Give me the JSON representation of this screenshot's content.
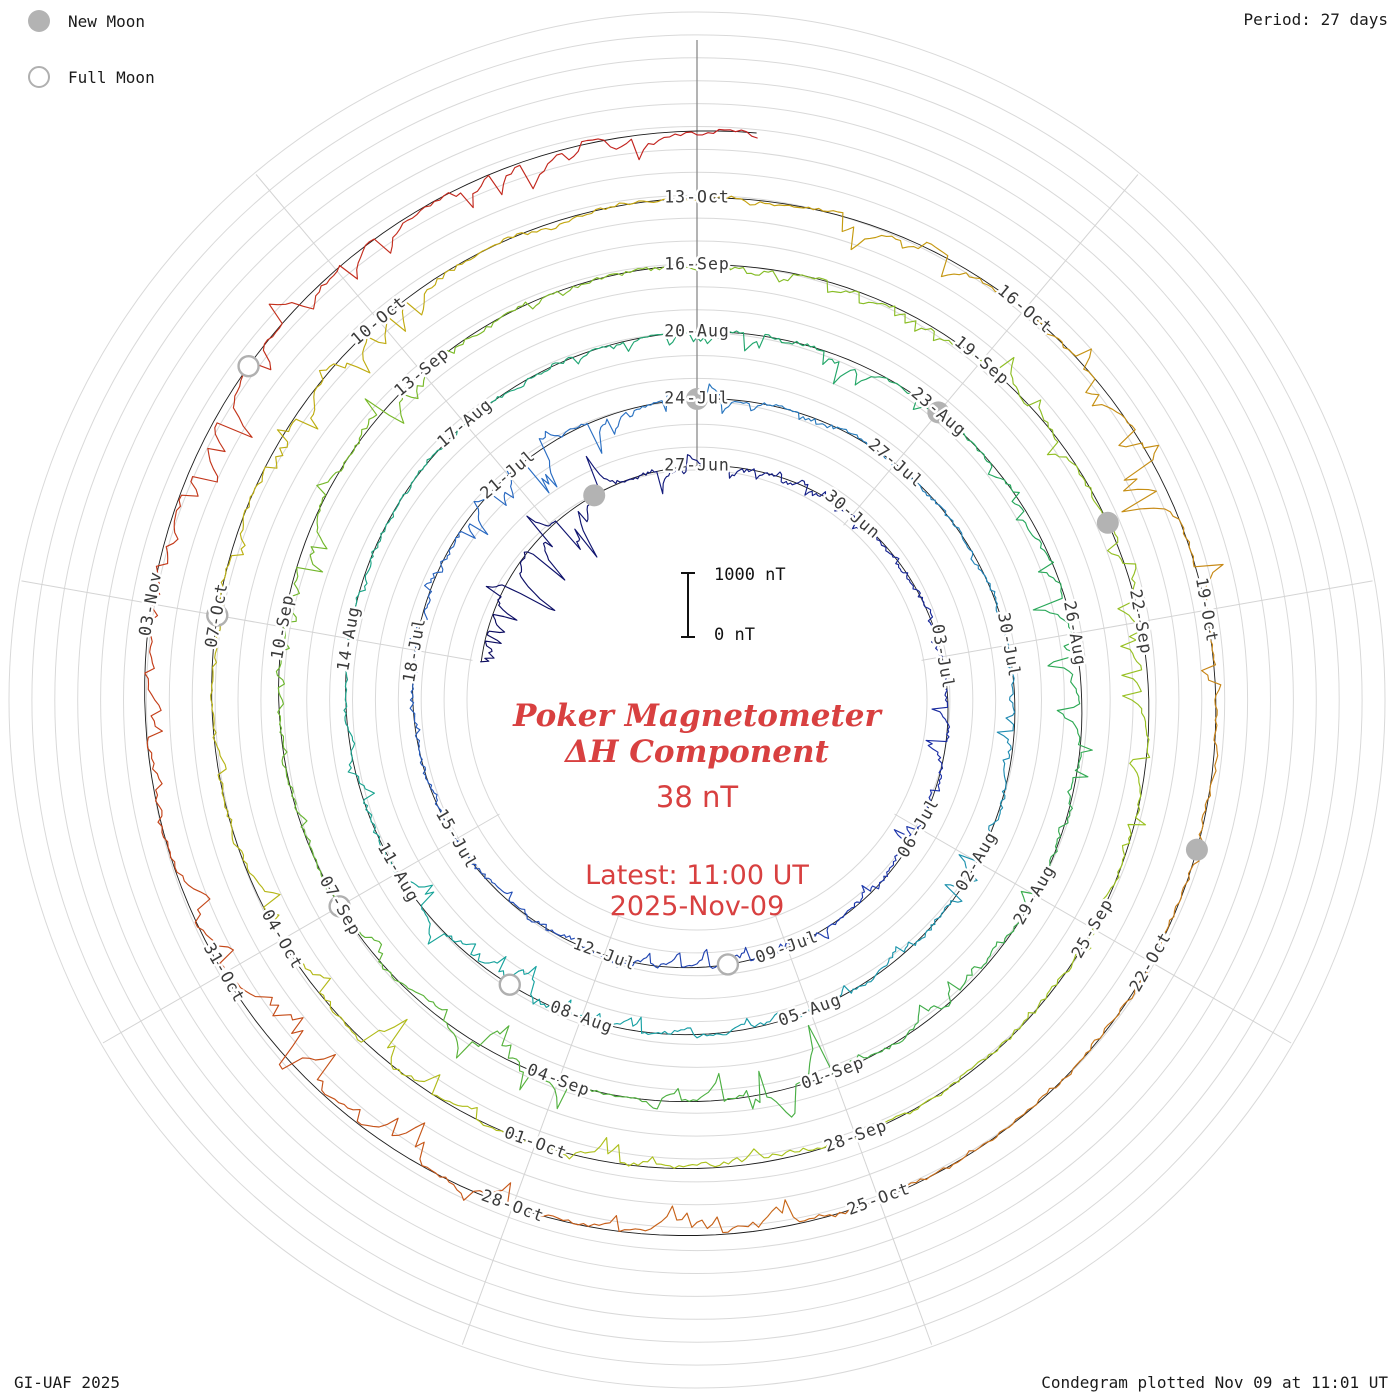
{
  "header": {
    "legend": {
      "new_moon_label": "New Moon",
      "full_moon_label": "Full Moon"
    },
    "period_label": "Period: 27 days"
  },
  "center": {
    "scale_top": "1000 nT",
    "scale_bottom": "0 nT",
    "title_line1": "Poker Magnetometer",
    "title_line2": "ΔH Component",
    "current_value": "38 nT",
    "latest_time": "Latest: 11:00 UT",
    "latest_date": "2025-Nov-09"
  },
  "footer": {
    "credit": "GI-UAF 2025",
    "plotted": "Condegram plotted Nov 09 at 11:01 UT"
  },
  "colors": {
    "annotation_red": "#d84040",
    "new_moon_fill": "#b3b3b3",
    "full_moon_stroke": "#b0b0b0",
    "grid": "#d9d9d9",
    "start_spoke": "#8a8a8a",
    "baseline": "#1c1c1c"
  },
  "chart_data": {
    "type": "line",
    "projection": "polar-spiral-condegram",
    "title": "Poker Magnetometer ΔH Component",
    "station": "Poker",
    "component": "ΔH",
    "units": "nT",
    "period_days": 27,
    "start_date": "2025-06-21",
    "latest": "2025-11-09 11:00 UT",
    "current_value_nT": 38,
    "radial_scale": {
      "label": "1000 nT",
      "reference": "0 nT",
      "nT_per_pixel": 15.15
    },
    "rotation_start_labels": [
      "27-Jun",
      "24-Jul",
      "20-Aug",
      "16-Sep",
      "13-Oct"
    ],
    "date_labels": [
      {
        "day": 6,
        "label": "27-Jun"
      },
      {
        "day": 9,
        "label": "30-Jun"
      },
      {
        "day": 12,
        "label": "03-Jul"
      },
      {
        "day": 15,
        "label": "06-Jul"
      },
      {
        "day": 18,
        "label": "09-Jul"
      },
      {
        "day": 21,
        "label": "12-Jul"
      },
      {
        "day": 24,
        "label": "15-Jul"
      },
      {
        "day": 27,
        "label": "18-Jul"
      },
      {
        "day": 30,
        "label": "21-Jul"
      },
      {
        "day": 33,
        "label": "24-Jul"
      },
      {
        "day": 36,
        "label": "27-Jul"
      },
      {
        "day": 39,
        "label": "30-Jul"
      },
      {
        "day": 42,
        "label": "02-Aug"
      },
      {
        "day": 45,
        "label": "05-Aug"
      },
      {
        "day": 48,
        "label": "08-Aug"
      },
      {
        "day": 51,
        "label": "11-Aug"
      },
      {
        "day": 54,
        "label": "14-Aug"
      },
      {
        "day": 57,
        "label": "17-Aug"
      },
      {
        "day": 60,
        "label": "20-Aug"
      },
      {
        "day": 63,
        "label": "23-Aug"
      },
      {
        "day": 66,
        "label": "26-Aug"
      },
      {
        "day": 69,
        "label": "29-Aug"
      },
      {
        "day": 72,
        "label": "01-Sep"
      },
      {
        "day": 75,
        "label": "04-Sep"
      },
      {
        "day": 78,
        "label": "07-Sep"
      },
      {
        "day": 81,
        "label": "10-Sep"
      },
      {
        "day": 84,
        "label": "13-Sep"
      },
      {
        "day": 87,
        "label": "16-Sep"
      },
      {
        "day": 90,
        "label": "19-Sep"
      },
      {
        "day": 93,
        "label": "22-Sep"
      },
      {
        "day": 96,
        "label": "25-Sep"
      },
      {
        "day": 99,
        "label": "28-Sep"
      },
      {
        "day": 102,
        "label": "01-Oct"
      },
      {
        "day": 105,
        "label": "04-Oct"
      },
      {
        "day": 108,
        "label": "07-Oct"
      },
      {
        "day": 111,
        "label": "10-Oct"
      },
      {
        "day": 114,
        "label": "13-Oct"
      },
      {
        "day": 117,
        "label": "16-Oct"
      },
      {
        "day": 120,
        "label": "19-Oct"
      },
      {
        "day": 123,
        "label": "22-Oct"
      },
      {
        "day": 126,
        "label": "25-Oct"
      },
      {
        "day": 129,
        "label": "28-Oct"
      },
      {
        "day": 132,
        "label": "31-Oct"
      },
      {
        "day": 135,
        "label": "03-Nov"
      }
    ],
    "new_moons": [
      {
        "date": "2025-06-25",
        "day": 4
      },
      {
        "date": "2025-07-24",
        "day": 33
      },
      {
        "date": "2025-08-23",
        "day": 63
      },
      {
        "date": "2025-09-21",
        "day": 92
      },
      {
        "date": "2025-10-21",
        "day": 122
      }
    ],
    "full_moons": [
      {
        "date": "2025-07-10",
        "day": 19
      },
      {
        "date": "2025-08-09",
        "day": 49
      },
      {
        "date": "2025-09-07",
        "day": 78
      },
      {
        "date": "2025-10-07",
        "day": 108
      },
      {
        "date": "2025-11-05",
        "day": 137
      }
    ],
    "colormap_stops": [
      [
        0.0,
        "#0b0b5e"
      ],
      [
        0.1,
        "#1b2fa8"
      ],
      [
        0.22,
        "#2b6fc4"
      ],
      [
        0.34,
        "#17a3a3"
      ],
      [
        0.46,
        "#27a85a"
      ],
      [
        0.58,
        "#74b82a"
      ],
      [
        0.7,
        "#a8c41e"
      ],
      [
        0.8,
        "#c4a60e"
      ],
      [
        0.88,
        "#c9731a"
      ],
      [
        0.94,
        "#c44418"
      ],
      [
        1.0,
        "#c21f1f"
      ]
    ],
    "disturbances": [
      {
        "start": 0,
        "end": 7,
        "amp_nT": 900
      },
      {
        "start": 12,
        "end": 16,
        "amp_nT": 350
      },
      {
        "start": 18,
        "end": 22,
        "amp_nT": 500
      },
      {
        "start": 29,
        "end": 34,
        "amp_nT": 650
      },
      {
        "start": 40,
        "end": 44,
        "amp_nT": 420
      },
      {
        "start": 47,
        "end": 52,
        "amp_nT": 600
      },
      {
        "start": 60,
        "end": 67,
        "amp_nT": 650
      },
      {
        "start": 71,
        "end": 76,
        "amp_nT": 800
      },
      {
        "start": 80,
        "end": 84,
        "amp_nT": 480
      },
      {
        "start": 89,
        "end": 95,
        "amp_nT": 700
      },
      {
        "start": 101,
        "end": 106,
        "amp_nT": 850
      },
      {
        "start": 109,
        "end": 112,
        "amp_nT": 480
      },
      {
        "start": 116,
        "end": 120,
        "amp_nT": 900
      },
      {
        "start": 127,
        "end": 132,
        "amp_nT": 800
      },
      {
        "start": 135,
        "end": 141,
        "amp_nT": 850
      }
    ],
    "noise_seed": 20251109,
    "legend_position": "top-left",
    "grid": true
  }
}
